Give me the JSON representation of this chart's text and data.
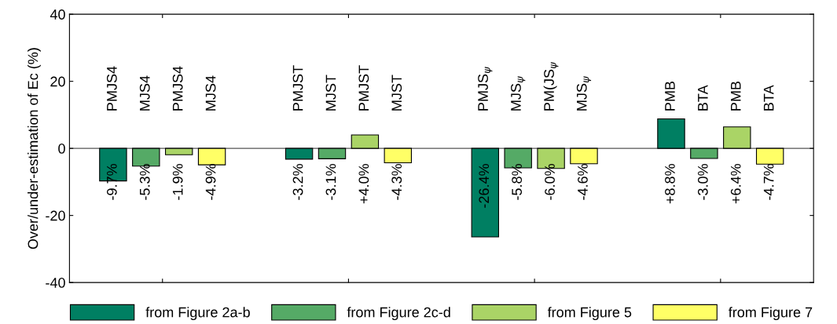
{
  "chart_data": {
    "type": "bar",
    "ylabel": "Over/under-estimation of Ec (%)",
    "categories": [
      null,
      null,
      null,
      null
    ],
    "series": [
      {
        "name": "from Figure 2a-b",
        "color": "#007f62",
        "values": [
          -9.7,
          -3.2,
          -26.4,
          8.8
        ],
        "value_labels": [
          "-9.7%",
          "-3.2%",
          "-26.4%",
          "+8.8%"
        ]
      },
      {
        "name": "from Figure 2c-d",
        "color": "#55aa66",
        "values": [
          -5.3,
          -3.1,
          -5.8,
          -3.0
        ],
        "value_labels": [
          "-5.3%",
          "-3.1%",
          "-5.8%",
          "-3.0%"
        ]
      },
      {
        "name": "from Figure 5",
        "color": "#aad466",
        "values": [
          -1.9,
          4.0,
          -6.0,
          6.4
        ],
        "value_labels": [
          "-1.9%",
          "+4.0%",
          "-6.0%",
          "+6.4%"
        ]
      },
      {
        "name": "from Figure 7",
        "color": "#ffff66",
        "values": [
          -4.9,
          -4.3,
          -4.6,
          -4.7
        ],
        "value_labels": [
          "-4.9%",
          "-4.3%",
          "-4.6%",
          "-4.7%"
        ]
      }
    ],
    "annotations": [
      "PMJS4",
      "MJS4",
      "PMJS4",
      "MJS4",
      "PMJST",
      "MJST",
      "PMJST",
      "MJST",
      "PMJS$_{ψ}$",
      "MJS$_{ψ}$",
      "PM(JS$_{ψ}$",
      "MJS$_{ψ}$",
      "PMB",
      "BTA",
      "PMB",
      "BTA"
    ],
    "ylim": [
      -40,
      40
    ],
    "yticks": [
      -40,
      -20,
      0,
      20,
      40
    ],
    "ref_lines": [
      {
        "axis": "y",
        "value": 0,
        "color": "#555555"
      }
    ],
    "legend": "bottom",
    "tick_labels": "y"
  }
}
